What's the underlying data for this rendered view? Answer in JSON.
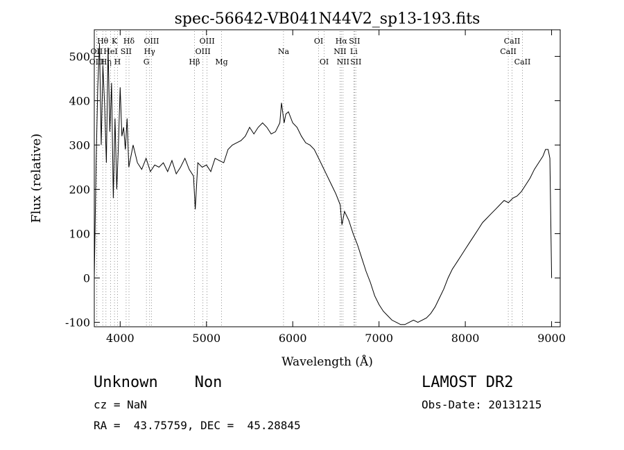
{
  "chart_data": {
    "type": "line",
    "title": "spec-56642-VB041N44V2_sp13-193.fits",
    "xlabel": "Wavelength (Å)",
    "ylabel": "Flux (relative)",
    "xlim": [
      3700,
      9100
    ],
    "ylim": [
      -110,
      560
    ],
    "xticks": [
      4000,
      5000,
      6000,
      7000,
      8000,
      9000
    ],
    "yticks": [
      -100,
      0,
      100,
      200,
      300,
      400,
      500
    ],
    "grid": false,
    "series": [
      {
        "x": [
          3700,
          3720,
          3740,
          3760,
          3780,
          3800,
          3820,
          3840,
          3860,
          3880,
          3900,
          3920,
          3940,
          3960,
          3980,
          4000,
          4020,
          4040,
          4060,
          4080,
          4100,
          4150,
          4200,
          4250,
          4300,
          4350,
          4400,
          4450,
          4500,
          4550,
          4600,
          4650,
          4700,
          4750,
          4800,
          4850,
          4870,
          4900,
          4950,
          5000,
          5050,
          5100,
          5150,
          5200,
          5250,
          5300,
          5350,
          5400,
          5450,
          5500,
          5550,
          5600,
          5650,
          5700,
          5750,
          5800,
          5850,
          5870,
          5900,
          5920,
          5950,
          6000,
          6050,
          6100,
          6150,
          6200,
          6250,
          6300,
          6350,
          6400,
          6450,
          6500,
          6550,
          6570,
          6600,
          6650,
          6700,
          6750,
          6800,
          6850,
          6900,
          6950,
          7000,
          7050,
          7100,
          7150,
          7200,
          7250,
          7300,
          7350,
          7400,
          7450,
          7500,
          7550,
          7600,
          7650,
          7700,
          7750,
          7800,
          7850,
          7900,
          7950,
          8000,
          8050,
          8100,
          8150,
          8200,
          8250,
          8300,
          8350,
          8400,
          8450,
          8500,
          8550,
          8600,
          8650,
          8700,
          8750,
          8800,
          8850,
          8900,
          8930,
          8960,
          8980,
          9000
        ],
        "y": [
          0,
          250,
          430,
          530,
          300,
          480,
          390,
          260,
          520,
          330,
          440,
          180,
          360,
          200,
          300,
          430,
          320,
          340,
          290,
          360,
          250,
          300,
          260,
          245,
          270,
          240,
          255,
          250,
          260,
          240,
          265,
          235,
          250,
          270,
          245,
          230,
          155,
          260,
          250,
          255,
          240,
          270,
          265,
          260,
          290,
          300,
          305,
          310,
          320,
          340,
          325,
          340,
          350,
          340,
          325,
          330,
          350,
          395,
          350,
          370,
          375,
          350,
          340,
          320,
          305,
          300,
          290,
          270,
          250,
          230,
          210,
          190,
          165,
          120,
          150,
          130,
          100,
          75,
          45,
          15,
          -10,
          -40,
          -60,
          -75,
          -85,
          -95,
          -100,
          -105,
          -105,
          -100,
          -95,
          -100,
          -95,
          -90,
          -80,
          -65,
          -45,
          -25,
          0,
          20,
          35,
          50,
          65,
          80,
          95,
          110,
          125,
          135,
          145,
          155,
          165,
          175,
          170,
          180,
          185,
          195,
          210,
          225,
          245,
          260,
          275,
          290,
          290,
          270,
          0
        ]
      }
    ],
    "line_marks": [
      {
        "label": "Hθ",
        "row": 1,
        "x": 3798
      },
      {
        "label": "OII",
        "row": 2,
        "x": 3727
      },
      {
        "label": "OIII",
        "row": 3,
        "x": 3730
      },
      {
        "label": "Hη",
        "row": 3,
        "x": 3835
      },
      {
        "label": "K",
        "row": 1,
        "x": 3934
      },
      {
        "label": "HeI",
        "row": 2,
        "x": 3889
      },
      {
        "label": "SII",
        "row": 2,
        "x": 4069
      },
      {
        "label": "H",
        "row": 3,
        "x": 3969
      },
      {
        "label": "Hδ",
        "row": 1,
        "x": 4102
      },
      {
        "label": "OIII",
        "row": 1,
        "x": 4363
      },
      {
        "label": "Hγ",
        "row": 2,
        "x": 4341
      },
      {
        "label": "G",
        "row": 3,
        "x": 4304
      },
      {
        "label": "OIII",
        "row": 1,
        "x": 5007
      },
      {
        "label": "OIII",
        "row": 2,
        "x": 4959
      },
      {
        "label": "Hβ",
        "row": 3,
        "x": 4861
      },
      {
        "label": "Mg",
        "row": 3,
        "x": 5175
      },
      {
        "label": "Na",
        "row": 2,
        "x": 5893
      },
      {
        "label": "OI",
        "row": 1,
        "x": 6300
      },
      {
        "label": "OI",
        "row": 3,
        "x": 6364
      },
      {
        "label": "Hα",
        "row": 1,
        "x": 6563
      },
      {
        "label": "SII",
        "row": 1,
        "x": 6716
      },
      {
        "label": "NII",
        "row": 2,
        "x": 6548
      },
      {
        "label": "Li",
        "row": 2,
        "x": 6708
      },
      {
        "label": "NII",
        "row": 3,
        "x": 6583
      },
      {
        "label": "SII",
        "row": 3,
        "x": 6731
      },
      {
        "label": "CaII",
        "row": 1,
        "x": 8542
      },
      {
        "label": "CaII",
        "row": 2,
        "x": 8498
      },
      {
        "label": "CaII",
        "row": 3,
        "x": 8662
      }
    ]
  },
  "info": {
    "classification": "Unknown    Non",
    "survey": "LAMOST DR2",
    "redshift": "cz = NaN",
    "obs_date": "Obs-Date: 20131215",
    "coords": "RA =  43.75759, DEC =  45.28845"
  }
}
